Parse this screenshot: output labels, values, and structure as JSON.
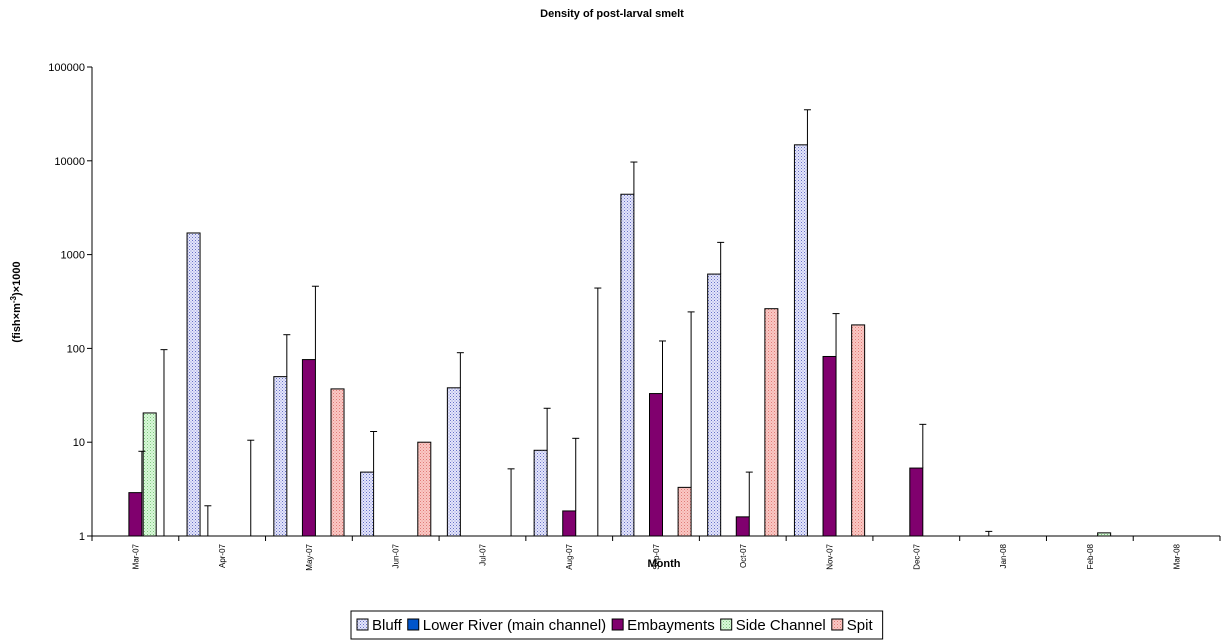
{
  "chart_data": {
    "type": "bar",
    "title": "Density of post-larval smelt",
    "xlabel": "Month",
    "ylabel": "(fish×m",
    "ylabel_sup": "-3",
    "ylabel_suffix": ")×1000",
    "yscale": "log",
    "ylim": [
      1,
      100000
    ],
    "yticks": [
      "1",
      "10",
      "100",
      "1000",
      "10000",
      "100000"
    ],
    "grid": false,
    "legend_position": "bottom-center",
    "categories": [
      "Mar-07",
      "Apr-07",
      "May-07",
      "Jun-07",
      "Jul-07",
      "Aug-07",
      "Sep-07",
      "Oct-07",
      "Nov-07",
      "Dec-07",
      "Jan-08",
      "Feb-08",
      "Mar-08"
    ],
    "series": [
      {
        "name": "Bluff",
        "color": "#d4d8f4",
        "pattern": "dotted",
        "values": [
          null,
          1700,
          50,
          4.8,
          38,
          8.2,
          4400,
          620,
          14800,
          null,
          null,
          null,
          null
        ],
        "error_upper": [
          null,
          null,
          140,
          13,
          90,
          23,
          9700,
          1350,
          35000,
          null,
          null,
          null,
          null
        ]
      },
      {
        "name": "Lower River (main channel)",
        "color": "#0055cc",
        "pattern": "solid",
        "values": [
          null,
          null,
          null,
          null,
          null,
          null,
          null,
          null,
          null,
          null,
          null,
          null,
          null
        ],
        "error_upper": [
          null,
          2.1,
          null,
          null,
          null,
          null,
          null,
          null,
          null,
          null,
          1.12,
          null,
          null
        ]
      },
      {
        "name": "Embayments",
        "color": "#80006e",
        "pattern": "solid",
        "values": [
          2.9,
          null,
          76,
          null,
          null,
          1.85,
          33,
          1.6,
          82,
          5.3,
          null,
          null,
          null
        ],
        "error_upper": [
          8,
          null,
          460,
          null,
          null,
          11,
          120,
          4.8,
          235,
          15.5,
          null,
          null,
          null
        ]
      },
      {
        "name": "Side Channel",
        "color": "#ccf4cc",
        "pattern": "dotted",
        "values": [
          20.5,
          null,
          null,
          null,
          null,
          null,
          null,
          null,
          null,
          null,
          null,
          1.08,
          null
        ],
        "error_upper": [
          null,
          null,
          null,
          null,
          null,
          null,
          null,
          null,
          null,
          null,
          null,
          null,
          null
        ]
      },
      {
        "name": "Spit",
        "color": "#f8b8b4",
        "pattern": "dotted",
        "values": [
          null,
          null,
          37,
          10,
          null,
          null,
          3.3,
          265,
          178,
          null,
          null,
          null,
          null
        ],
        "error_upper": [
          97,
          10.5,
          null,
          null,
          5.2,
          440,
          245,
          null,
          null,
          null,
          null,
          null,
          null
        ]
      }
    ]
  }
}
